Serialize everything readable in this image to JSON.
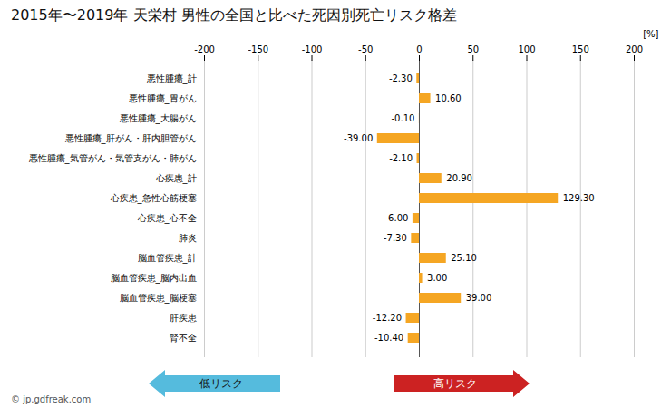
{
  "chart_data": {
    "type": "bar",
    "orientation": "horizontal",
    "title": "2015年〜2019年 天栄村 男性の全国と比べた死因別死亡リスク格差",
    "xlabel": "[%]",
    "categories": [
      "悪性腫瘍_計",
      "悪性腫瘍_胃がん",
      "悪性腫瘍_大腸がん",
      "悪性腫瘍_肝がん・肝内胆管がん",
      "悪性腫瘍_気管がん・気管支がん・肺がん",
      "心疾患_計",
      "心疾患_急性心筋梗塞",
      "心疾患_心不全",
      "肺炎",
      "脳血管疾患_計",
      "脳血管疾患_脳内出血",
      "脳血管疾患_脳梗塞",
      "肝疾患",
      "腎不全"
    ],
    "values": [
      -2.3,
      10.6,
      -0.1,
      -39.0,
      -2.1,
      20.9,
      129.3,
      -6.0,
      -7.3,
      25.1,
      3.0,
      39.0,
      -12.2,
      -10.4
    ],
    "value_labels": [
      "-2.30",
      "10.60",
      "-0.10",
      "-39.00",
      "-2.10",
      "20.90",
      "129.30",
      "-6.00",
      "-7.30",
      "25.10",
      "3.00",
      "39.00",
      "-12.20",
      "-10.40"
    ],
    "data_labels": true,
    "color": "#F5A623",
    "xlim": [
      -200,
      200
    ],
    "xticks": [
      -200,
      -150,
      -100,
      -50,
      0,
      50,
      100,
      150,
      200
    ],
    "grid": true,
    "annotations": [
      {
        "text": "低リスク",
        "color": "#55BBDD"
      },
      {
        "text": "高リスク",
        "color": "#CC2222"
      },
      {
        "text": "© jp.gdfreak.com"
      }
    ]
  }
}
